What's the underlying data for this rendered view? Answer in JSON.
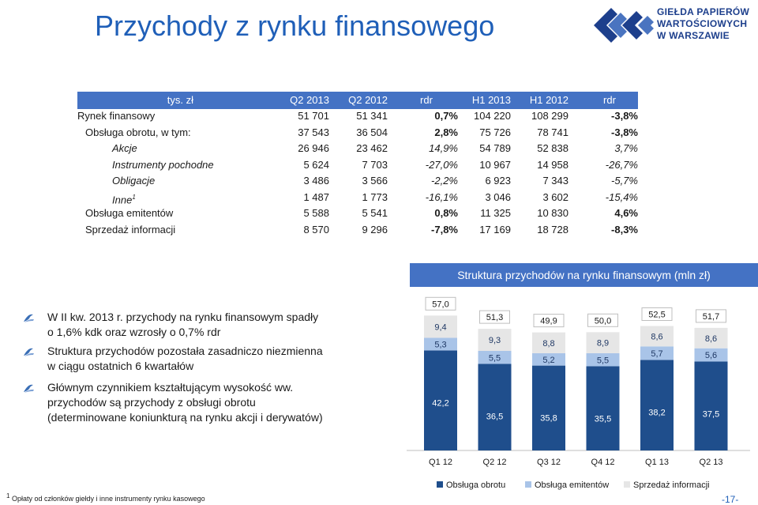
{
  "title": "Przychody z rynku finansowego",
  "logo": {
    "line1": "GIEŁDA PAPIERÓW",
    "line2": "WARTOŚCIOWYCH",
    "line3": "W WARSZAWIE"
  },
  "table": {
    "headers": [
      "tys. zł",
      "Q2 2013",
      "Q2 2012",
      "rdr",
      "H1 2013",
      "H1 2012",
      "rdr"
    ],
    "rows": [
      {
        "label": "Rynek finansowy",
        "sup": "",
        "style": "main",
        "values": [
          "51 701",
          "51 341",
          "0,7%",
          "104 220",
          "108 299",
          "-3,8%"
        ]
      },
      {
        "label": "Obsługa obrotu, w tym:",
        "sup": "",
        "style": "sub",
        "values": [
          "37 543",
          "36 504",
          "2,8%",
          "75 726",
          "78 741",
          "-3,8%"
        ]
      },
      {
        "label": "Akcje",
        "sup": "",
        "style": "ital",
        "values": [
          "26 946",
          "23 462",
          "14,9%",
          "54 789",
          "52 838",
          "3,7%"
        ]
      },
      {
        "label": "Instrumenty pochodne",
        "sup": "",
        "style": "ital",
        "values": [
          "5 624",
          "7 703",
          "-27,0%",
          "10 967",
          "14 958",
          "-26,7%"
        ]
      },
      {
        "label": "Obligacje",
        "sup": "",
        "style": "ital",
        "values": [
          "3 486",
          "3 566",
          "-2,2%",
          "6 923",
          "7 343",
          "-5,7%"
        ]
      },
      {
        "label": "Inne",
        "sup": "1",
        "style": "ital",
        "values": [
          "1 487",
          "1 773",
          "-16,1%",
          "3 046",
          "3 602",
          "-15,4%"
        ]
      },
      {
        "label": "Obsługa emitentów",
        "sup": "",
        "style": "sub",
        "values": [
          "5 588",
          "5 541",
          "0,8%",
          "11 325",
          "10 830",
          "4,6%"
        ]
      },
      {
        "label": "Sprzedaż informacji",
        "sup": "",
        "style": "sub",
        "values": [
          "8 570",
          "9 296",
          "-7,8%",
          "17 169",
          "18 728",
          "-8,3%"
        ]
      }
    ]
  },
  "bullets": [
    {
      "line1": "W II kw. 2013 r. przychody na rynku finansowym spadły",
      "line2": "o 1,6% kdk oraz wzrosły o 0,7% rdr",
      "line3": ""
    },
    {
      "line1": "Struktura przychodów pozostała zasadniczo niezmienna",
      "line2": "w ciągu ostatnich 6 kwartałów",
      "line3": ""
    },
    {
      "line1": "Głównym czynnikiem kształtującym wysokość ww.",
      "line2": "przychodów są przychody z obsługi obrotu",
      "line3": "(determinowane koniunkturą na rynku akcji i derywatów)"
    }
  ],
  "chart_data": {
    "type": "bar",
    "stacked": true,
    "title": "Struktura przychodów na rynku finansowym (mln zł)",
    "categories": [
      "Q1 12",
      "Q2 12",
      "Q3 12",
      "Q4 12",
      "Q1 13",
      "Q2 13"
    ],
    "series": [
      {
        "name": "Obsługa obrotu",
        "color": "#1f4e8c",
        "values": [
          42.2,
          36.5,
          35.8,
          35.5,
          38.2,
          37.5
        ],
        "labels": [
          "42,2",
          "36,5",
          "35,8",
          "35,5",
          "38,2",
          "37,5"
        ]
      },
      {
        "name": "Obsługa emitentów",
        "color": "#a9c4e8",
        "values": [
          5.3,
          5.5,
          5.2,
          5.5,
          5.7,
          5.6
        ],
        "labels": [
          "5,3",
          "5,5",
          "5,2",
          "5,5",
          "5,7",
          "5,6"
        ]
      },
      {
        "name": "Sprzedaż informacji",
        "color": "#e6e6e6",
        "values": [
          9.4,
          9.3,
          8.8,
          8.9,
          8.6,
          8.6
        ],
        "labels": [
          "9,4",
          "9,3",
          "8,8",
          "8,9",
          "8,6",
          "8,6"
        ]
      }
    ],
    "totals": [
      57.0,
      51.3,
      49.9,
      50.0,
      52.5,
      51.7
    ],
    "total_labels": [
      "57,0",
      "51,3",
      "49,9",
      "50,0",
      "52,5",
      "51,7"
    ],
    "grid": false,
    "legend_position": "bottom"
  },
  "footnote": {
    "sup": "1",
    "text": "Opłaty od członków giełdy i inne instrumenty rynku kasowego"
  },
  "page_number": "-17-"
}
